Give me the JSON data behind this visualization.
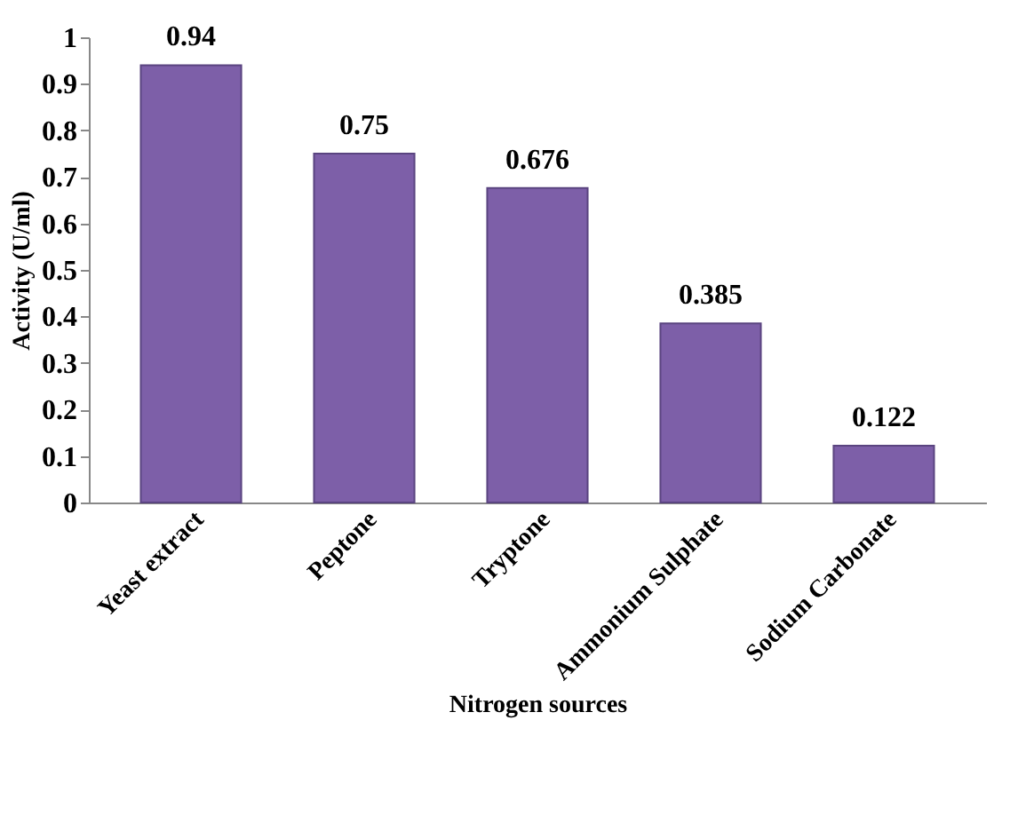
{
  "chart_data": {
    "type": "bar",
    "xlabel": "Nitrogen sources",
    "ylabel": "Activity (U/ml)",
    "categories": [
      "Yeast extract",
      "Peptone",
      "Tryptone",
      "Ammonium Sulphate",
      "Sodium Carbonate"
    ],
    "values": [
      0.94,
      0.75,
      0.676,
      0.385,
      0.122
    ],
    "color": "#7d5fa8",
    "ylim": [
      0,
      1
    ],
    "yticks": [
      0,
      0.1,
      0.2,
      0.3,
      0.4,
      0.5,
      0.6,
      0.7,
      0.8,
      0.9,
      1
    ],
    "grid": false,
    "data_labels": true
  }
}
